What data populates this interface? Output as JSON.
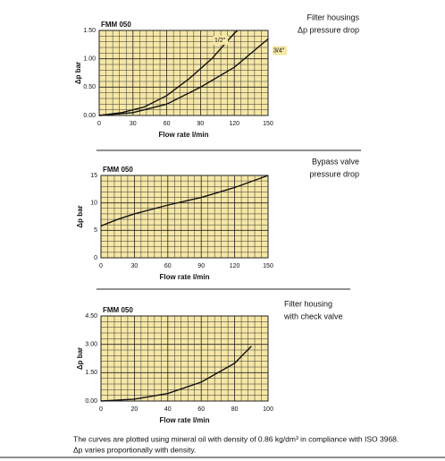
{
  "chart_data": [
    {
      "type": "line",
      "title": "FMM 050",
      "caption": [
        "Filter housings",
        "Δp pressure drop"
      ],
      "xlabel": "Flow rate l/min",
      "ylabel": "Δp bar",
      "xlim": [
        0,
        150
      ],
      "ylim": [
        0,
        1.5
      ],
      "xticks": [
        0,
        30,
        60,
        90,
        120,
        150
      ],
      "yticks": [
        {
          "value": 0,
          "label": "0.00"
        },
        {
          "value": 0.5,
          "label": "0.50"
        },
        {
          "value": 1,
          "label": "1.00"
        },
        {
          "value": 1.5,
          "label": "1.50"
        }
      ],
      "grid": true,
      "minor_divisions": 5,
      "background": "#f6e7a6",
      "series": [
        {
          "name": "1/2\"",
          "color": "#111111",
          "x": [
            0,
            20,
            40,
            60,
            80,
            100,
            120,
            123
          ],
          "values": [
            0,
            0.05,
            0.15,
            0.35,
            0.65,
            1.0,
            1.45,
            1.5
          ]
        },
        {
          "name": "3/4\"",
          "color": "#111111",
          "x": [
            0,
            30,
            60,
            90,
            120,
            150
          ],
          "values": [
            0,
            0.05,
            0.2,
            0.5,
            0.85,
            1.35
          ]
        }
      ]
    },
    {
      "type": "line",
      "title": "FMM 050",
      "caption": [
        "Bypass valve",
        "pressure drop"
      ],
      "xlabel": "Flow rate l/min",
      "ylabel": "Δp bar",
      "xlim": [
        0,
        150
      ],
      "ylim": [
        0,
        15
      ],
      "xticks": [
        0,
        30,
        60,
        90,
        120,
        150
      ],
      "yticks": [
        0,
        5,
        10,
        15
      ],
      "grid": true,
      "minor_divisions": 5,
      "background": "#f6e7a6",
      "series": [
        {
          "color": "#111111",
          "x": [
            0,
            15,
            30,
            60,
            90,
            120,
            150
          ],
          "values": [
            5.8,
            7,
            8,
            9.6,
            11,
            12.8,
            15
          ]
        }
      ]
    },
    {
      "type": "line",
      "title": "FMM 050",
      "caption": [
        "Filter housing",
        "with check valve"
      ],
      "xlabel": "Flow rate l/min",
      "ylabel": "Δp bar",
      "xlim": [
        0,
        100
      ],
      "ylim": [
        0,
        4.5
      ],
      "xticks": [
        0,
        20,
        40,
        60,
        80,
        100
      ],
      "yticks": [
        {
          "value": 0,
          "label": "0.00"
        },
        {
          "value": 1.5,
          "label": "1.50"
        },
        {
          "value": 3,
          "label": "3.00"
        },
        {
          "value": 4.5,
          "label": "4.50"
        }
      ],
      "grid": true,
      "minor_divisions": 5,
      "background": "#f6e7a6",
      "series": [
        {
          "color": "#111111",
          "x": [
            0,
            20,
            40,
            60,
            80,
            90
          ],
          "values": [
            0,
            0.1,
            0.4,
            1.0,
            2.0,
            2.9
          ]
        }
      ]
    }
  ],
  "footnote": [
    "The curves are plotted using mineral oil with density of 0.86 kg/dm³ in compliance with ISO 3968.",
    "Δp varies proportionally with density."
  ]
}
